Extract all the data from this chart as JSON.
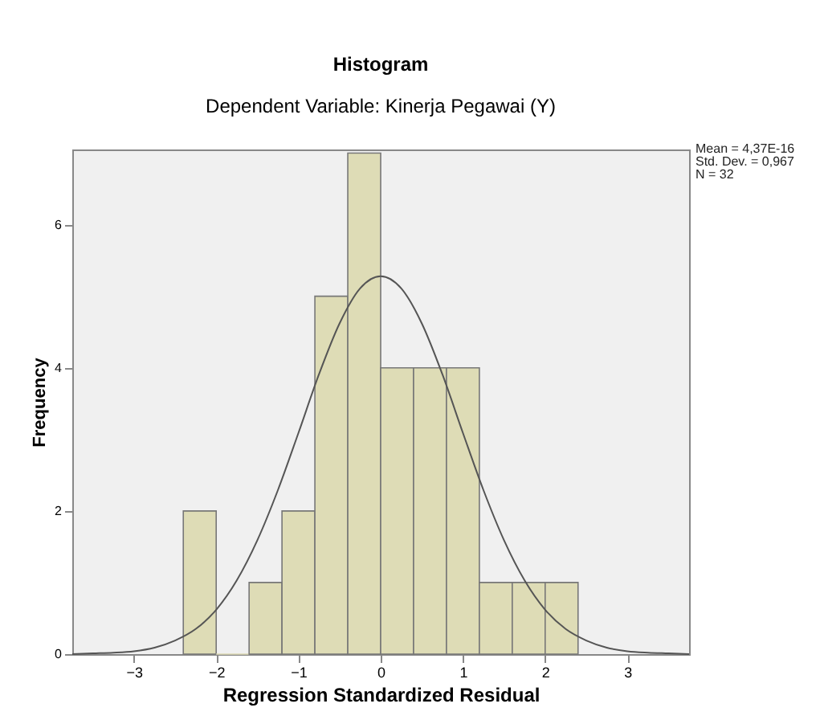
{
  "chart_data": {
    "type": "histogram",
    "title": "Histogram",
    "subtitle": "Dependent Variable: Kinerja Pegawai (Y)",
    "xlabel": "Regression Standardized Residual",
    "ylabel": "Frequency",
    "series": [
      {
        "type": "histogram",
        "color": "#dedcb6",
        "bins": [
          -2.4,
          -2.0,
          -1.6,
          -1.2,
          -0.8,
          -0.4,
          0,
          0.4,
          0.8,
          1.2,
          1.6,
          2.0,
          2.4
        ],
        "values": [
          2,
          0,
          1,
          2,
          5,
          7,
          4,
          4,
          4,
          1,
          1,
          1
        ]
      },
      {
        "type": "line",
        "color": "#555555",
        "x": [
          -3.75,
          -3.5,
          -3.25,
          -3.0,
          -2.75,
          -2.5,
          -2.25,
          -2.0,
          -1.75,
          -1.5,
          -1.25,
          -1.0,
          -0.75,
          -0.5,
          -0.25,
          0,
          0.25,
          0.5,
          0.75,
          1.0,
          1.25,
          1.5,
          1.75,
          2.0,
          2.25,
          2.5,
          2.75,
          3.0,
          3.25,
          3.5,
          3.75
        ],
        "values": [
          0.0,
          0.01,
          0.02,
          0.04,
          0.09,
          0.19,
          0.35,
          0.62,
          1.03,
          1.59,
          2.29,
          3.09,
          3.91,
          4.62,
          5.11,
          5.28,
          5.11,
          4.62,
          3.91,
          3.09,
          2.29,
          1.59,
          1.03,
          0.62,
          0.35,
          0.19,
          0.09,
          0.04,
          0.02,
          0.01,
          0.0
        ]
      }
    ],
    "xlim": [
      -3.75,
      3.75
    ],
    "xticks": [
      -3,
      -2,
      -1,
      0,
      1,
      2,
      3
    ],
    "ylim": [
      0,
      7.05
    ],
    "yticks": [
      0,
      2,
      4,
      6
    ],
    "grid": false,
    "annotations": [
      "Mean = 4,37E-16",
      "Std. Dev. = 0,967",
      "N = 32"
    ]
  }
}
